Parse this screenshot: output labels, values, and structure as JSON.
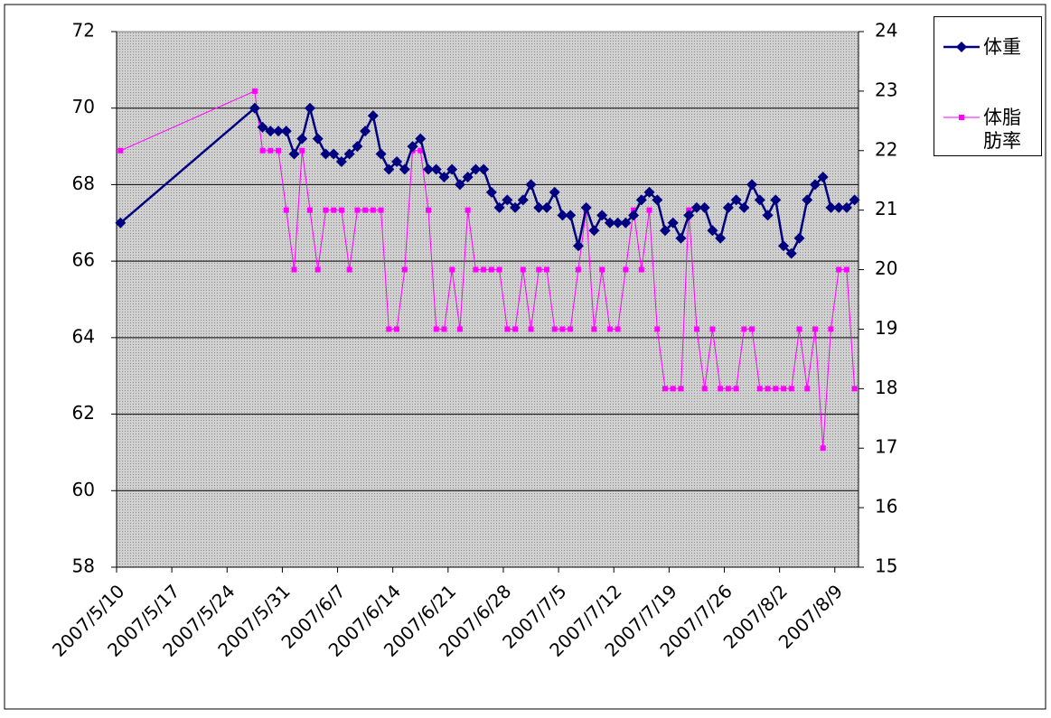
{
  "chart_data": {
    "type": "line",
    "x": [
      "2007-05-10",
      "2007-05-27",
      "2007-05-28",
      "2007-05-29",
      "2007-05-30",
      "2007-05-31",
      "2007-06-01",
      "2007-06-02",
      "2007-06-03",
      "2007-06-04",
      "2007-06-05",
      "2007-06-06",
      "2007-06-07",
      "2007-06-08",
      "2007-06-09",
      "2007-06-10",
      "2007-06-11",
      "2007-06-12",
      "2007-06-13",
      "2007-06-14",
      "2007-06-15",
      "2007-06-16",
      "2007-06-17",
      "2007-06-18",
      "2007-06-19",
      "2007-06-20",
      "2007-06-21",
      "2007-06-22",
      "2007-06-23",
      "2007-06-24",
      "2007-06-25",
      "2007-06-26",
      "2007-06-27",
      "2007-06-28",
      "2007-06-29",
      "2007-06-30",
      "2007-07-01",
      "2007-07-02",
      "2007-07-03",
      "2007-07-04",
      "2007-07-05",
      "2007-07-06",
      "2007-07-07",
      "2007-07-08",
      "2007-07-09",
      "2007-07-10",
      "2007-07-11",
      "2007-07-12",
      "2007-07-13",
      "2007-07-14",
      "2007-07-15",
      "2007-07-16",
      "2007-07-17",
      "2007-07-18",
      "2007-07-19",
      "2007-07-20",
      "2007-07-21",
      "2007-07-22",
      "2007-07-23",
      "2007-07-24",
      "2007-07-25",
      "2007-07-26",
      "2007-07-27",
      "2007-07-28",
      "2007-07-29",
      "2007-07-30",
      "2007-07-31",
      "2007-08-01",
      "2007-08-02",
      "2007-08-03",
      "2007-08-04",
      "2007-08-05",
      "2007-08-06",
      "2007-08-07",
      "2007-08-08",
      "2007-08-09",
      "2007-08-10",
      "2007-08-11"
    ],
    "series": [
      {
        "name": "体重",
        "color": "#000080",
        "marker": "diamond",
        "values": [
          67,
          70,
          69.5,
          69.4,
          69.4,
          69.4,
          68.8,
          69.2,
          70,
          69.2,
          68.8,
          68.8,
          68.6,
          68.8,
          69,
          69.4,
          69.8,
          68.8,
          68.4,
          68.6,
          68.4,
          69,
          69.2,
          68.4,
          68.4,
          68.2,
          68.4,
          68,
          68.2,
          68.4,
          68.4,
          67.8,
          67.4,
          67.6,
          67.4,
          67.6,
          68,
          67.4,
          67.4,
          67.8,
          67.2,
          67.2,
          66.4,
          67.4,
          66.8,
          67.2,
          67,
          67,
          67,
          67.2,
          67.6,
          67.8,
          67.6,
          66.8,
          67,
          66.6,
          67.2,
          67.4,
          67.4,
          66.8,
          66.6,
          67.4,
          67.6,
          67.4,
          68,
          67.6,
          67.2,
          67.6,
          66.4,
          66.2,
          66.6,
          67.6,
          68,
          68.2,
          67.4,
          67.4,
          67.4,
          67.6
        ]
      },
      {
        "name": "体脂肪率",
        "color": "#ff00ff",
        "marker": "square",
        "axis": "y2",
        "values": [
          22,
          23,
          22,
          22,
          22,
          21,
          20,
          22,
          21,
          20,
          21,
          21,
          21,
          20,
          21,
          21,
          21,
          21,
          19,
          19,
          20,
          22,
          22,
          21,
          19,
          19,
          20,
          19,
          21,
          20,
          20,
          20,
          20,
          19,
          19,
          20,
          19,
          20,
          20,
          19,
          19,
          19,
          20,
          21,
          19,
          20,
          19,
          19,
          20,
          21,
          20,
          21,
          19,
          18,
          18,
          18,
          21,
          19,
          18,
          19,
          18,
          18,
          18,
          19,
          19,
          18,
          18,
          18,
          18,
          18,
          19,
          18,
          19,
          17,
          19,
          20,
          20,
          18
        ]
      }
    ],
    "xlim": [
      "2007-05-10",
      "2007-08-12"
    ],
    "xticks": [
      {
        "value": "2007-05-10",
        "label": "2007/5/10"
      },
      {
        "value": "2007-05-17",
        "label": "2007/5/17"
      },
      {
        "value": "2007-05-24",
        "label": "2007/5/24"
      },
      {
        "value": "2007-05-31",
        "label": "2007/5/31"
      },
      {
        "value": "2007-06-07",
        "label": "2007/6/7"
      },
      {
        "value": "2007-06-14",
        "label": "2007/6/14"
      },
      {
        "value": "2007-06-21",
        "label": "2007/6/21"
      },
      {
        "value": "2007-06-28",
        "label": "2007/6/28"
      },
      {
        "value": "2007-07-05",
        "label": "2007/7/5"
      },
      {
        "value": "2007-07-12",
        "label": "2007/7/12"
      },
      {
        "value": "2007-07-19",
        "label": "2007/7/19"
      },
      {
        "value": "2007-07-26",
        "label": "2007/7/26"
      },
      {
        "value": "2007-08-02",
        "label": "2007/8/2"
      },
      {
        "value": "2007-08-09",
        "label": "2007/8/9"
      }
    ],
    "ylim": [
      58,
      72
    ],
    "yticks": [
      58,
      60,
      62,
      64,
      66,
      68,
      70,
      72
    ],
    "y2lim": [
      15,
      24
    ],
    "y2ticks": [
      15,
      16,
      17,
      18,
      19,
      20,
      21,
      22,
      23,
      24
    ],
    "grid": true,
    "legend": "right"
  }
}
